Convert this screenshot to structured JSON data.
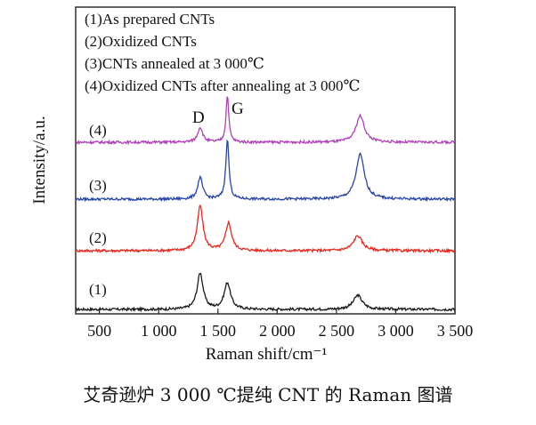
{
  "caption": "艾奇逊炉 3 000 ℃提纯 CNT 的 Raman 图谱",
  "chart_data": {
    "type": "line",
    "title": "",
    "xlabel": "Raman shift/cm⁻¹",
    "ylabel": "Intensity/a.u.",
    "xlim": [
      300,
      3500
    ],
    "xticks": [
      500,
      1000,
      1500,
      2000,
      2500,
      3000,
      3500
    ],
    "xtick_labels": [
      "500",
      "1 000",
      "1 500",
      "2 000",
      "2 500",
      "3 000",
      "3 500"
    ],
    "legend": [
      "(1)As prepared CNTs",
      "(2)Oxidized CNTs",
      "(3)CNTs annealed at 3 000℃",
      "(4)Oxidized CNTs after annealing at 3 000℃"
    ],
    "legend_position": "top-left",
    "annotations": [
      {
        "text": "D",
        "x": 1350
      },
      {
        "text": "G",
        "x": 1580
      }
    ],
    "series": [
      {
        "name": "(1)",
        "color": "#1a1a1a",
        "baseline": 0.0,
        "peaks": [
          {
            "x": 1350,
            "height": 0.85,
            "width": 30
          },
          {
            "x": 1580,
            "height": 0.62,
            "width": 32
          },
          {
            "x": 2680,
            "height": 0.33,
            "width": 45
          }
        ]
      },
      {
        "name": "(2)",
        "color": "#e8281e",
        "baseline": 1.0,
        "peaks": [
          {
            "x": 1350,
            "height": 1.05,
            "width": 28
          },
          {
            "x": 1590,
            "height": 0.65,
            "width": 30
          },
          {
            "x": 2680,
            "height": 0.35,
            "width": 45
          }
        ]
      },
      {
        "name": "(3)",
        "color": "#2845a8",
        "baseline": 2.0,
        "peaks": [
          {
            "x": 1350,
            "height": 0.5,
            "width": 25
          },
          {
            "x": 1580,
            "height": 1.4,
            "width": 16
          },
          {
            "x": 2700,
            "height": 1.05,
            "width": 42
          }
        ]
      },
      {
        "name": "(4)",
        "color": "#b040b8",
        "baseline": 3.0,
        "peaks": [
          {
            "x": 1350,
            "height": 0.35,
            "width": 25
          },
          {
            "x": 1580,
            "height": 1.1,
            "width": 14
          },
          {
            "x": 2700,
            "height": 0.62,
            "width": 42
          }
        ]
      }
    ]
  }
}
